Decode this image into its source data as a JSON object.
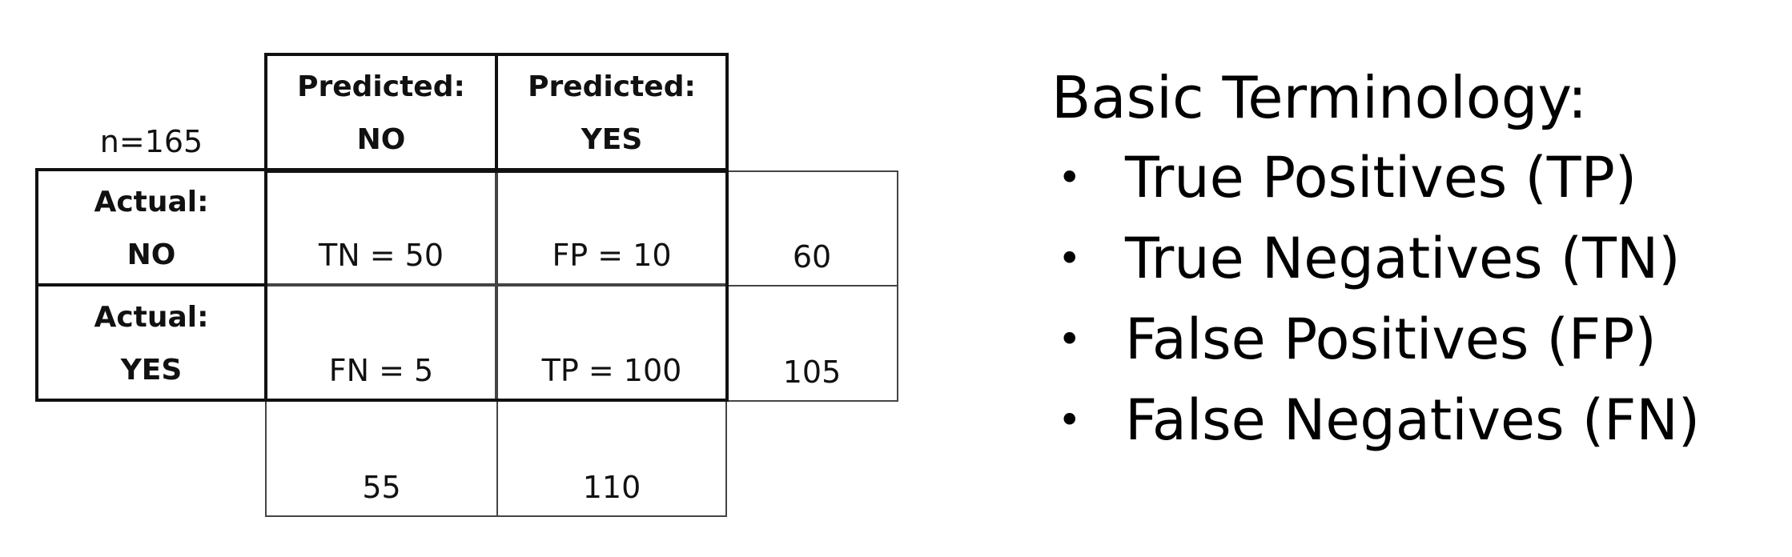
{
  "matrix": {
    "n_label": "n=165",
    "predicted_no": {
      "line1": "Predicted:",
      "line2": "NO"
    },
    "predicted_yes": {
      "line1": "Predicted:",
      "line2": "YES"
    },
    "actual_no": {
      "line1": "Actual:",
      "line2": "NO"
    },
    "actual_yes": {
      "line1": "Actual:",
      "line2": "YES"
    },
    "tn": "TN = 50",
    "fp": "FP = 10",
    "fn": "FN = 5",
    "tp": "TP = 100",
    "row_total_no": "60",
    "row_total_yes": "105",
    "col_total_no": "55",
    "col_total_yes": "110"
  },
  "terminology": {
    "title": "Basic Terminology:",
    "bullet": "•",
    "items": [
      "True Positives (TP)",
      "True Negatives (TN)",
      "False Positives (FP)",
      "False Negatives (FN)"
    ]
  }
}
